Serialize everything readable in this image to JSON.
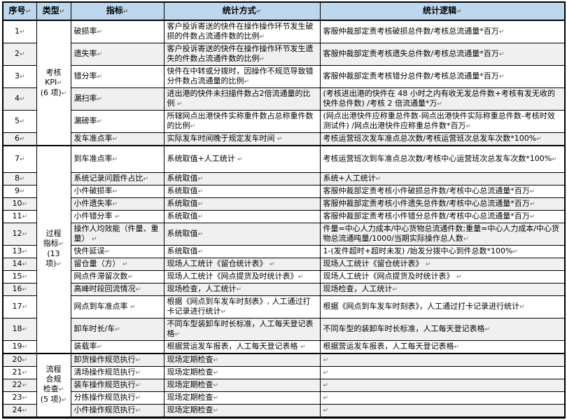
{
  "colors": {
    "header_bg": "#BDD7EE",
    "band_bg": "#F0F0F0",
    "border": "#000000",
    "text": "#000000"
  },
  "table": {
    "headers": [
      "序号↵",
      "类型↵",
      "指标↵",
      "统计方式↵",
      "统计逻辑↵"
    ],
    "groups": [
      {
        "type": "考核\nKPI↵\n(6 项)↵",
        "rows": [
          {
            "no": "1↵",
            "indicator": "破损率↵",
            "method": "客户投诉寄送的快件在操作操作环节发生破损的件数占流通件数的比例↵",
            "logic": "客服仲裁部定责考核破损总件数/考核总流通量*百万↵"
          },
          {
            "no": "2↵",
            "indicator": "遗失率↵",
            "method": "客户投诉寄送的快件在操作操作环节发生遗失的件数占流通件数的比例↵",
            "logic": "客服仲裁部定责考核遗失总件数/考核总流通量*百万↵"
          },
          {
            "no": "3↵",
            "indicator": "错分率↵",
            "method": "快件在中转或分拨时，因操作不规范导致错分件数占流通量的比例↵",
            "logic": "客服仲裁部定责考核错分总件数/考核总流通量*百万↵"
          },
          {
            "no": "4↵",
            "indicator": "漏扫率↵",
            "method": "进出港的快件未扫描件数占2倍流通量的比例 ↵",
            "logic": "(考核进出港的快件在 48 小时之内有收无发总件数+考核有发无收的快件总件数) /考核 2 倍流通量*万↵"
          },
          {
            "no": "5↵",
            "indicator": "漏磅率↵",
            "method": "所辖网点出港快件实称重件数占总称重件数的比例↵",
            "logic": "(网点出港快件应称重总件数-网点出港快件实际称重总件数-考核时效测试件) /网点出港快件应称重总件数*百万↵"
          },
          {
            "no": "6↵",
            "indicator": "发车准点率↵",
            "method": "实际发车时间晚于规定发车时间 ↵",
            "logic": "考核运营班次发车准点总次数/考核运营班次总发车次数*100%↵"
          }
        ]
      },
      {
        "type": "过程\n指标↵\n(13\n项)↵",
        "rows": [
          {
            "no": "7↵",
            "indicator": "到车准点率↵",
            "method": "系统取值+人工统计 ↵",
            "logic": "考核运营班次到车准点总次数/考核中心运营班次总发车次数*100%↵"
          },
          {
            "no": "8↵",
            "indicator": "系统记录问题件占比↵",
            "method": "系统取值↵",
            "logic": "系统+人工统计↵"
          },
          {
            "no": "9↵",
            "indicator": "小件破损率↵",
            "method": "系统取值↵",
            "logic": "客服仲裁部定责考核小件破损总件数/考核中心总流通量*百万↵"
          },
          {
            "no": "10↵",
            "indicator": "小件遗失率↵",
            "method": "系统取值↵",
            "logic": "客服仲裁部定责考核小件遗失总件数/考核中心总流通量*百万↵"
          },
          {
            "no": "11↵",
            "indicator": "小件错分率 ↵",
            "method": "系统取值↵",
            "logic": "客服仲裁部定责考核小件错分总件数/考核中心总流通量*百万↵"
          },
          {
            "no": "12↵",
            "indicator": "操作人均效能（件量、重量） ↵",
            "method": "系统取值↵",
            "logic": "件量=中心人力成本/中心货物总流通件数;重量=中心人力成本/中心货物总流通吨量/1000/当期实际操作总人数↵"
          },
          {
            "no": "13↵",
            "indicator": "快件延误↵",
            "method": "系统取值↵",
            "logic": "1-(发件超时+超时未发) /始发分拨中心到件总数*100%↵"
          },
          {
            "no": "14↵",
            "indicator": "留仓量（方） ↵",
            "method": "现场人工统计《留仓统计表》 ↵",
            "logic": "现场人工统计《留仓统计表》 ↵"
          },
          {
            "no": "15↵",
            "indicator": "网点件滞留次数↵",
            "method": "现场人工统计《网点提货及时统计表》↵",
            "logic": "现场人工统计《网点提货及时统计表》 ↵"
          },
          {
            "no": "16↵",
            "indicator": "高峰时段回流情况↵",
            "method": "现场检查，人工统计↵",
            "logic": "现场检查，人工统计↵"
          },
          {
            "no": "17↵",
            "indicator": "网点到车准点率 ↵",
            "method": "根据《网点到车发车时刻表》, 人工通过打卡记录进行统计↵",
            "logic": "根据《网点到车发车时刻表》，人工通过打卡记录进行统计↵"
          },
          {
            "no": "18↵",
            "indicator": "卸车时长/车↵",
            "method": "不同车型装卸车时长标准，人工每天登记表格↵",
            "logic": "不同车型的装卸车时长标准，人工每天登记表格↵"
          },
          {
            "no": "19↵",
            "indicator": "装载率↵",
            "method": "根据营运发车报表，人工每天登记表格 ↵",
            "logic": "根据营运发车报表，人工每天登记表格↵"
          }
        ]
      },
      {
        "type": "流程\n合规\n检查↵\n(5 项)↵",
        "rows": [
          {
            "no": "20↵",
            "indicator": "卸货操作规范执行↵",
            "method": "现场定期检查↵",
            "logic": "↵"
          },
          {
            "no": "21↵",
            "indicator": "清场操作规范执行↵",
            "method": "现场定期检查↵",
            "logic": "↵"
          },
          {
            "no": "22↵",
            "indicator": "装车操作规范执行↵",
            "method": "现场定期检查↵",
            "logic": "↵"
          },
          {
            "no": "23↵",
            "indicator": "分拣操作规范执行↵",
            "method": "现场定期检查↵",
            "logic": "↵"
          },
          {
            "no": "24↵",
            "indicator": "小件操作规范执行↵",
            "method": "现场定期检查↵",
            "logic": "↵"
          }
        ]
      }
    ]
  }
}
